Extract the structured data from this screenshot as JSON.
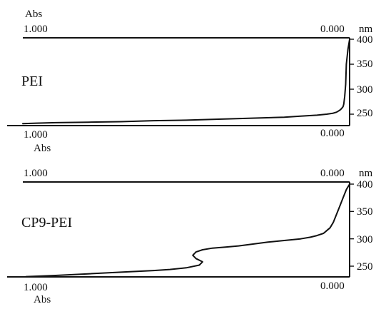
{
  "chart_data": [
    {
      "type": "line",
      "sample_label": "PEI",
      "y_unit": "nm",
      "x_unit": "Abs",
      "x_left_label": "1.000",
      "x_right_label": "0.000",
      "y_ticks": [
        "400",
        "350",
        "300",
        "250"
      ],
      "y_tick_values": [
        400,
        350,
        300,
        250
      ],
      "xlim": [
        1.0,
        0.0
      ],
      "ylim": [
        230,
        410
      ],
      "series": [
        {
          "x": [
            1.0,
            0.96,
            0.9,
            0.8,
            0.7,
            0.6,
            0.5,
            0.4,
            0.3,
            0.2,
            0.15,
            0.1,
            0.07,
            0.05,
            0.04,
            0.035,
            0.03,
            0.025,
            0.02,
            0.018,
            0.015,
            0.012,
            0.01,
            0.005,
            0.0
          ],
          "y": [
            231,
            232,
            233,
            234,
            235,
            237,
            238,
            240,
            242,
            244,
            246,
            248,
            250,
            252,
            254,
            256,
            258,
            261,
            265,
            270,
            285,
            310,
            350,
            380,
            400
          ]
        }
      ]
    },
    {
      "type": "line",
      "sample_label": "CP9-PEI",
      "y_unit": "nm",
      "x_unit": "Abs",
      "x_left_label": "1.000",
      "x_right_label": "0.000",
      "y_ticks": [
        "400",
        "350",
        "300",
        "250"
      ],
      "y_tick_values": [
        400,
        350,
        300,
        250
      ],
      "xlim": [
        1.0,
        0.0
      ],
      "ylim": [
        230,
        410
      ],
      "series": [
        {
          "x": [
            0.99,
            0.9,
            0.8,
            0.7,
            0.6,
            0.55,
            0.5,
            0.46,
            0.45,
            0.47,
            0.48,
            0.47,
            0.45,
            0.42,
            0.38,
            0.34,
            0.3,
            0.25,
            0.2,
            0.15,
            0.12,
            0.1,
            0.08,
            0.07,
            0.06,
            0.05,
            0.04,
            0.03,
            0.02,
            0.01,
            0.0
          ],
          "y": [
            231,
            233,
            236,
            239,
            242,
            244,
            247,
            252,
            258,
            264,
            270,
            276,
            280,
            283,
            285,
            287,
            290,
            294,
            297,
            300,
            303,
            306,
            310,
            315,
            320,
            330,
            345,
            360,
            375,
            390,
            400
          ]
        }
      ]
    }
  ]
}
